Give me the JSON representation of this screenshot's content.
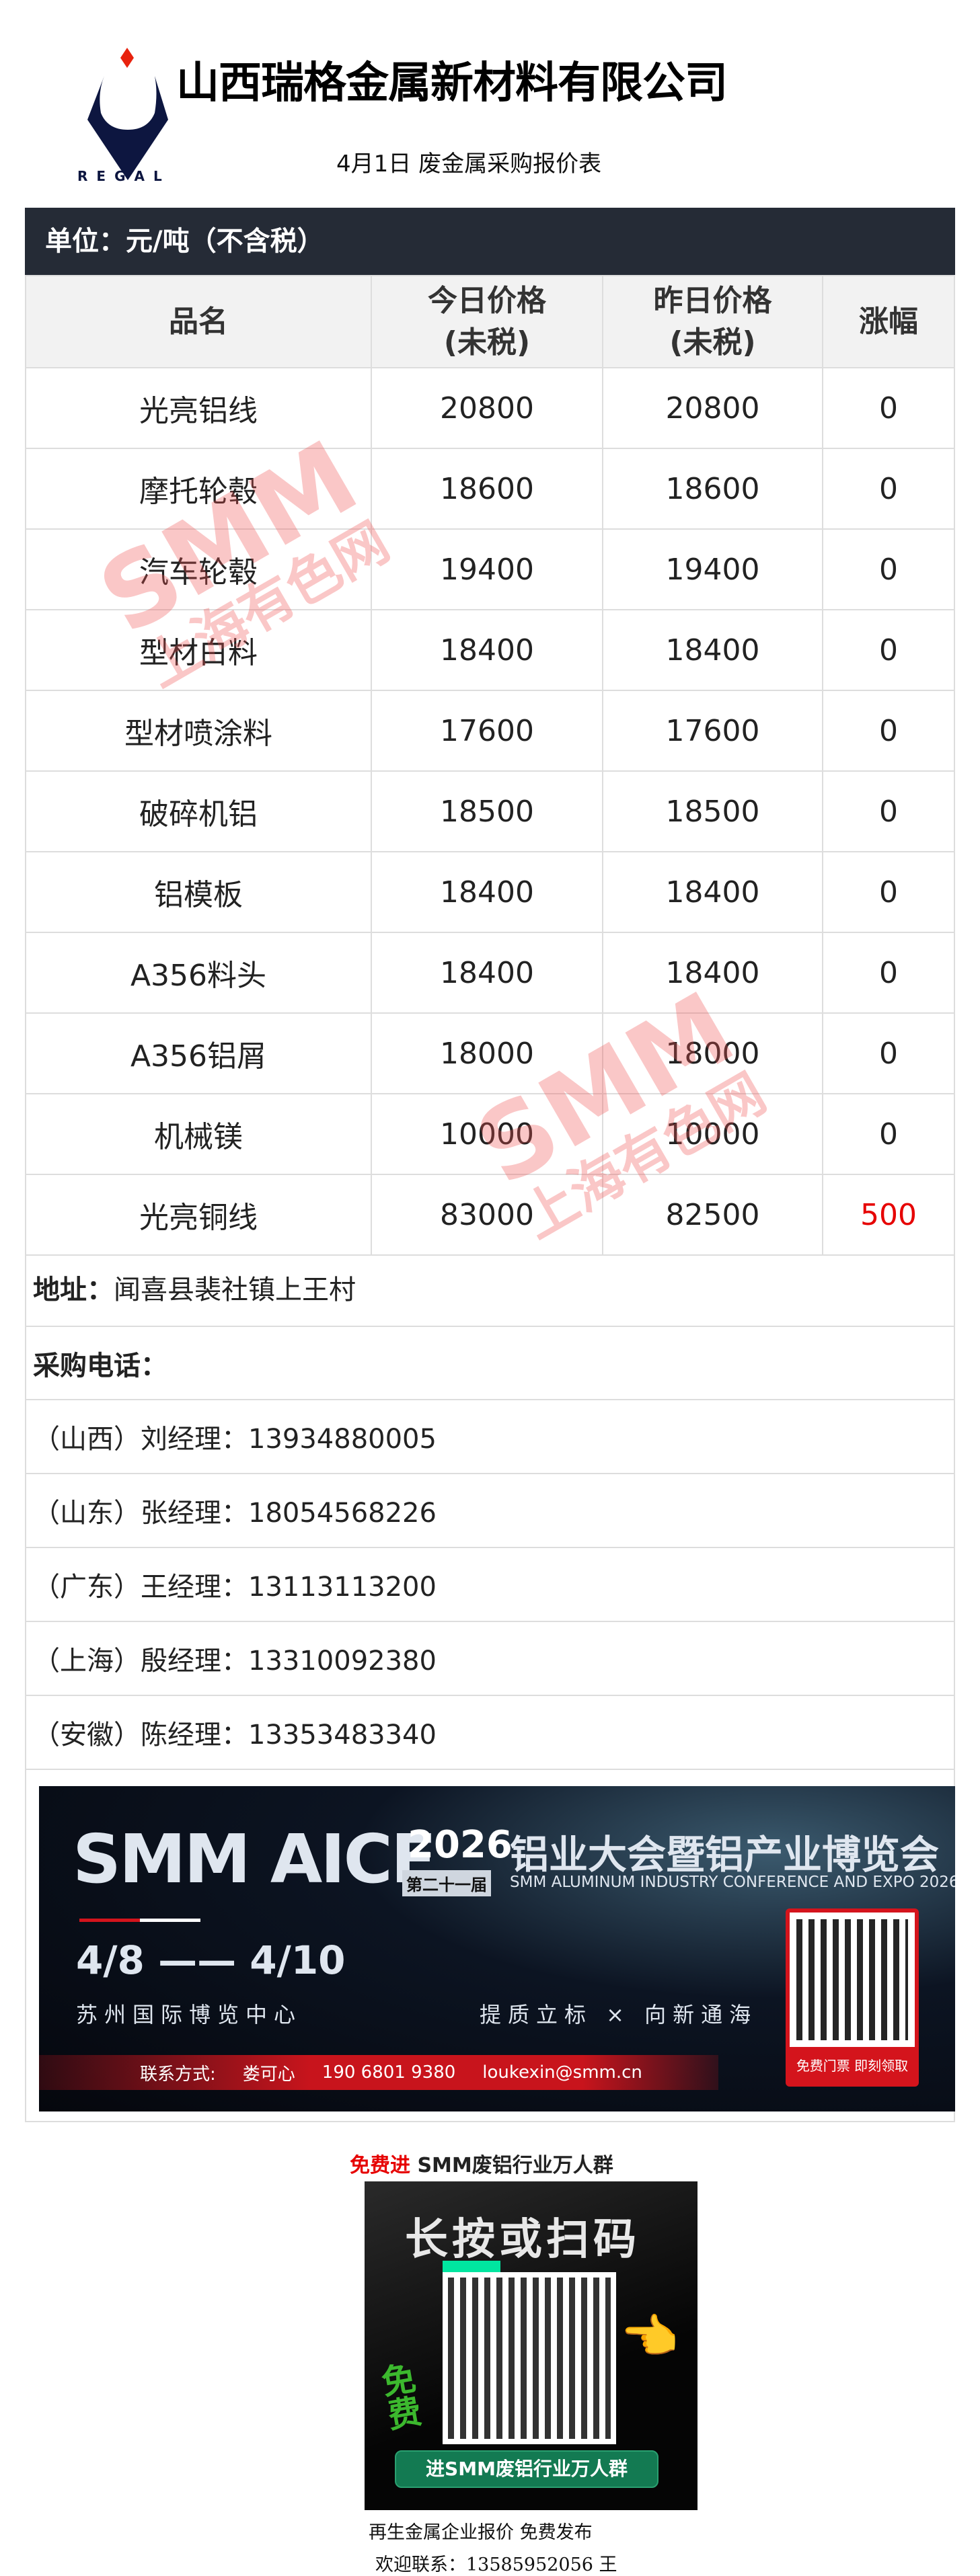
{
  "header": {
    "company": "山西瑞格金属新材料有限公司",
    "logo_text": "REGAL",
    "subtitle": "4月1日 废金属采购报价表"
  },
  "unit": "单位：元/吨（不含税）",
  "table": {
    "columns": [
      "品名",
      "今日价格\n(未税)",
      "昨日价格\n(未税)",
      "涨幅"
    ],
    "col_lines": [
      [
        "品名"
      ],
      [
        "今日价格",
        "(未税)"
      ],
      [
        "昨日价格",
        "(未税)"
      ],
      [
        "涨幅"
      ]
    ],
    "rows": [
      [
        "光亮铝线",
        "20800",
        "20800",
        "0"
      ],
      [
        "摩托轮毂",
        "18600",
        "18600",
        "0"
      ],
      [
        "汽车轮毂",
        "19400",
        "19400",
        "0"
      ],
      [
        "型材白料",
        "18400",
        "18400",
        "0"
      ],
      [
        "型材喷涂料",
        "17600",
        "17600",
        "0"
      ],
      [
        "破碎机铝",
        "18500",
        "18500",
        "0"
      ],
      [
        "铝模板",
        "18400",
        "18400",
        "0"
      ],
      [
        "A356料头",
        "18400",
        "18400",
        "0"
      ],
      [
        "A356铝屑",
        "18000",
        "18000",
        "0"
      ],
      [
        "机械镁",
        "10000",
        "10000",
        "0"
      ],
      [
        "光亮铜线",
        "83000",
        "82500",
        "500"
      ]
    ]
  },
  "address": {
    "label": "地址：",
    "value": "闻喜县裴社镇上王村"
  },
  "phones": {
    "label": "采购电话：",
    "items": [
      "（山西）刘经理：13934880005",
      "（山东）张经理：18054568226",
      "（广东）王经理：13113113200",
      "（上海）殷经理：13310092380",
      "（安徽）陈经理：13353483340"
    ]
  },
  "watermark": {
    "line1": "SMM",
    "line2": "上海有色网"
  },
  "banner": {
    "brand": "SMM AICE",
    "year": "2026",
    "edition": "第二十一届",
    "title_cn": "铝业大会暨铝产业博览会",
    "title_en": "SMM ALUMINUM INDUSTRY CONFERENCE AND EXPO 2026",
    "dates": "4/8 —— 4/10",
    "venue": "苏州国际博览中心",
    "slogan": "提质立标 × 向新通海",
    "contact_label": "联系方式:",
    "contact_name": "娄可心",
    "contact_phone": "190 6801 9380",
    "contact_email": "loukexin@smm.cn",
    "ticket": "免费门票 即刻领取"
  },
  "group": {
    "prefix": "免费进",
    "title": " SMM废铝行业万人群",
    "qr_heading": "长按或扫码",
    "qr_side": "免费",
    "qr_button": "进SMM废铝行业万人群"
  },
  "footer": {
    "line1": "再生金属企业报价  免费发布",
    "line2": "欢迎联系：13585952056  王"
  },
  "colors": {
    "header_bg": "#252b36",
    "increase": "#e60000",
    "logo_navy": "#0d1640",
    "logo_red": "#e8220e",
    "accent_red": "#d4141c"
  }
}
